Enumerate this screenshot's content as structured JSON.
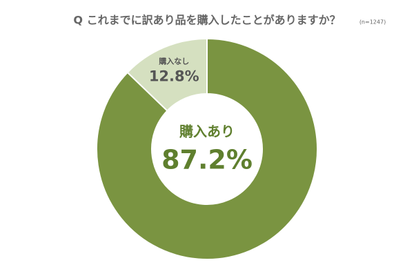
{
  "chart_data": {
    "type": "donut",
    "title": "Q これまでに訳あり品を購入したことがありますか？",
    "subtitle": "(n=1247)",
    "categories": [
      "購入あり",
      "購入なし"
    ],
    "values": [
      87.2,
      12.8
    ],
    "value_labels": [
      "87.2%",
      "12.8%"
    ],
    "colors": [
      "#7a9441",
      "#d5e0c0"
    ]
  }
}
